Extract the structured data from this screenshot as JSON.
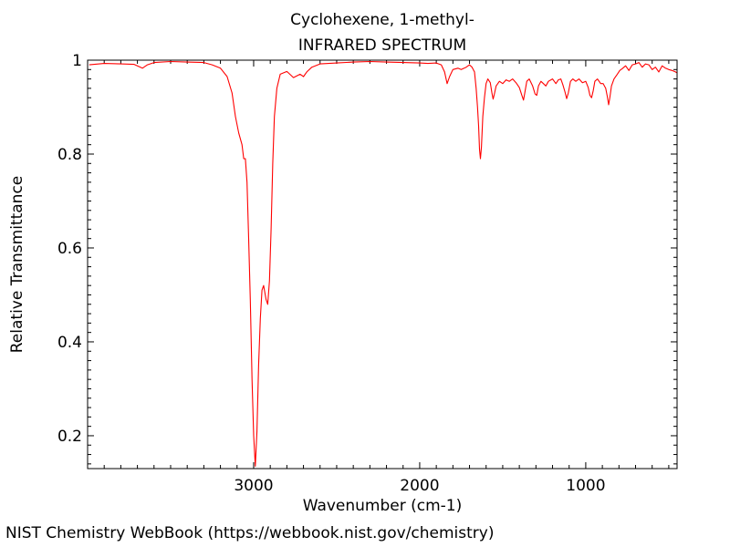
{
  "chart_data": {
    "type": "line",
    "title": "Cyclohexene, 1-methyl-",
    "subtitle": "INFRARED SPECTRUM",
    "xlabel": "Wavenumber (cm-1)",
    "ylabel": "Relative Transmittance",
    "xlim": [
      4000,
      450
    ],
    "ylim": [
      0.13,
      1.0
    ],
    "x_reversed": true,
    "x_ticks": [
      3000,
      2000,
      1000
    ],
    "x_tick_labels": [
      "3000",
      "2000",
      "1000"
    ],
    "y_ticks": [
      0.2,
      0.4,
      0.6,
      0.8,
      1
    ],
    "y_tick_labels": [
      "0.2",
      "0.4",
      "0.6",
      "0.8",
      "1"
    ],
    "grid": false,
    "series_color": "#ff0000",
    "series": [
      {
        "points": [
          [
            3990,
            0.99
          ],
          [
            3900,
            0.993
          ],
          [
            3800,
            0.992
          ],
          [
            3720,
            0.991
          ],
          [
            3670,
            0.983
          ],
          [
            3640,
            0.99
          ],
          [
            3600,
            0.995
          ],
          [
            3500,
            0.997
          ],
          [
            3400,
            0.996
          ],
          [
            3300,
            0.995
          ],
          [
            3250,
            0.99
          ],
          [
            3200,
            0.983
          ],
          [
            3160,
            0.965
          ],
          [
            3130,
            0.93
          ],
          [
            3110,
            0.88
          ],
          [
            3090,
            0.845
          ],
          [
            3070,
            0.82
          ],
          [
            3060,
            0.79
          ],
          [
            3050,
            0.79
          ],
          [
            3040,
            0.74
          ],
          [
            3030,
            0.62
          ],
          [
            3020,
            0.49
          ],
          [
            3010,
            0.32
          ],
          [
            3000,
            0.2
          ],
          [
            2990,
            0.135
          ],
          [
            2980,
            0.21
          ],
          [
            2970,
            0.35
          ],
          [
            2960,
            0.45
          ],
          [
            2950,
            0.51
          ],
          [
            2940,
            0.52
          ],
          [
            2925,
            0.49
          ],
          [
            2915,
            0.48
          ],
          [
            2905,
            0.53
          ],
          [
            2895,
            0.64
          ],
          [
            2885,
            0.78
          ],
          [
            2875,
            0.88
          ],
          [
            2860,
            0.94
          ],
          [
            2840,
            0.97
          ],
          [
            2800,
            0.976
          ],
          [
            2760,
            0.963
          ],
          [
            2720,
            0.97
          ],
          [
            2700,
            0.965
          ],
          [
            2680,
            0.975
          ],
          [
            2650,
            0.985
          ],
          [
            2600,
            0.992
          ],
          [
            2500,
            0.994
          ],
          [
            2400,
            0.996
          ],
          [
            2300,
            0.997
          ],
          [
            2200,
            0.996
          ],
          [
            2100,
            0.995
          ],
          [
            2000,
            0.994
          ],
          [
            1950,
            0.993
          ],
          [
            1900,
            0.994
          ],
          [
            1870,
            0.99
          ],
          [
            1850,
            0.975
          ],
          [
            1835,
            0.95
          ],
          [
            1820,
            0.965
          ],
          [
            1800,
            0.98
          ],
          [
            1770,
            0.983
          ],
          [
            1750,
            0.98
          ],
          [
            1720,
            0.985
          ],
          [
            1700,
            0.99
          ],
          [
            1685,
            0.985
          ],
          [
            1670,
            0.975
          ],
          [
            1660,
            0.94
          ],
          [
            1652,
            0.9
          ],
          [
            1645,
            0.86
          ],
          [
            1640,
            0.81
          ],
          [
            1634,
            0.79
          ],
          [
            1628,
            0.815
          ],
          [
            1620,
            0.88
          ],
          [
            1610,
            0.92
          ],
          [
            1600,
            0.95
          ],
          [
            1590,
            0.96
          ],
          [
            1575,
            0.952
          ],
          [
            1565,
            0.93
          ],
          [
            1558,
            0.917
          ],
          [
            1550,
            0.928
          ],
          [
            1540,
            0.945
          ],
          [
            1520,
            0.955
          ],
          [
            1500,
            0.95
          ],
          [
            1480,
            0.958
          ],
          [
            1460,
            0.955
          ],
          [
            1440,
            0.96
          ],
          [
            1420,
            0.952
          ],
          [
            1400,
            0.942
          ],
          [
            1385,
            0.925
          ],
          [
            1375,
            0.915
          ],
          [
            1368,
            0.928
          ],
          [
            1355,
            0.955
          ],
          [
            1340,
            0.96
          ],
          [
            1320,
            0.945
          ],
          [
            1305,
            0.928
          ],
          [
            1295,
            0.925
          ],
          [
            1285,
            0.945
          ],
          [
            1270,
            0.955
          ],
          [
            1255,
            0.95
          ],
          [
            1240,
            0.945
          ],
          [
            1225,
            0.955
          ],
          [
            1200,
            0.96
          ],
          [
            1180,
            0.95
          ],
          [
            1165,
            0.958
          ],
          [
            1150,
            0.96
          ],
          [
            1138,
            0.948
          ],
          [
            1125,
            0.932
          ],
          [
            1115,
            0.918
          ],
          [
            1105,
            0.93
          ],
          [
            1092,
            0.955
          ],
          [
            1078,
            0.96
          ],
          [
            1060,
            0.955
          ],
          [
            1040,
            0.96
          ],
          [
            1020,
            0.952
          ],
          [
            1000,
            0.955
          ],
          [
            985,
            0.942
          ],
          [
            975,
            0.925
          ],
          [
            965,
            0.92
          ],
          [
            955,
            0.935
          ],
          [
            945,
            0.955
          ],
          [
            930,
            0.96
          ],
          [
            910,
            0.95
          ],
          [
            895,
            0.95
          ],
          [
            880,
            0.94
          ],
          [
            870,
            0.922
          ],
          [
            862,
            0.905
          ],
          [
            855,
            0.92
          ],
          [
            845,
            0.945
          ],
          [
            830,
            0.96
          ],
          [
            810,
            0.97
          ],
          [
            795,
            0.978
          ],
          [
            780,
            0.982
          ],
          [
            760,
            0.988
          ],
          [
            740,
            0.978
          ],
          [
            720,
            0.99
          ],
          [
            700,
            0.992
          ],
          [
            680,
            0.995
          ],
          [
            660,
            0.985
          ],
          [
            640,
            0.992
          ],
          [
            620,
            0.99
          ],
          [
            600,
            0.98
          ],
          [
            580,
            0.985
          ],
          [
            560,
            0.975
          ],
          [
            540,
            0.988
          ],
          [
            520,
            0.983
          ],
          [
            500,
            0.98
          ],
          [
            480,
            0.978
          ],
          [
            460,
            0.975
          ],
          [
            450,
            0.973
          ]
        ]
      }
    ]
  },
  "credit": "NIST Chemistry WebBook (https://webbook.nist.gov/chemistry)"
}
